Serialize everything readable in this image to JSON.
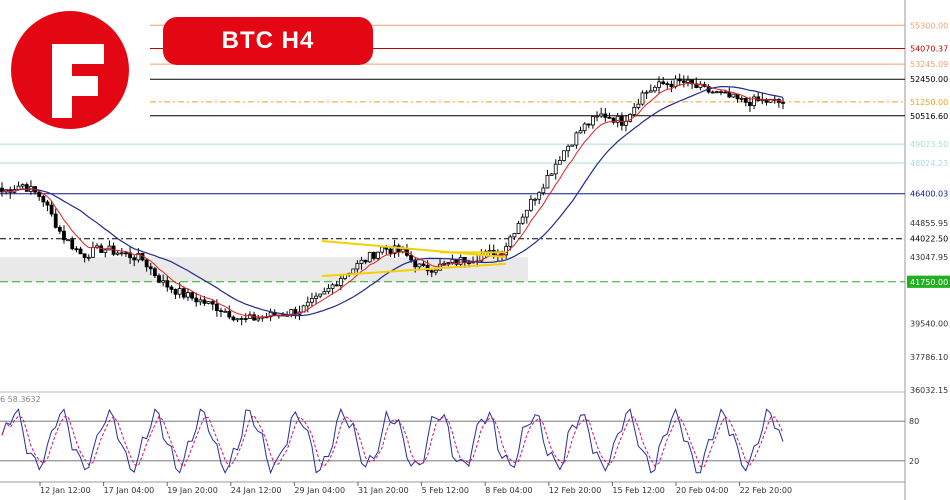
{
  "title_badge": "BTC  H4",
  "oscillator_label": "6 58.3632",
  "colors": {
    "brand": "#e30613",
    "sma": "#1f2a8c",
    "ema": "#e02020",
    "triangle": "#f5d000",
    "stoch_k": "#2030a0",
    "stoch_d": "#d01070"
  },
  "chart_data": [
    {
      "type": "candlestick",
      "symbol": "BTC",
      "timeframe": "H4",
      "ylim": [
        36032.15,
        56000
      ],
      "y_tick_labels": [
        "44855.95",
        "43047.95",
        "39540.00",
        "37786.10",
        "36032.15"
      ],
      "x_tick_labels": [
        "12 Jan 12:00",
        "17 Jan 04:00",
        "19 Jan 20:00",
        "24 Jan 12:00",
        "29 Jan 04:00",
        "31 Jan 20:00",
        "5 Feb 12:00",
        "8 Feb 04:00",
        "12 Feb 20:00",
        "15 Feb 12:00",
        "20 Feb 04:00",
        "22 Feb 20:00"
      ],
      "levels": [
        {
          "value": 55300.0,
          "label": "55300.00",
          "color": "#f0a070",
          "style": "solid"
        },
        {
          "value": 54070.37,
          "label": "54070.37",
          "color": "#c00000",
          "style": "solid"
        },
        {
          "value": 53245.09,
          "label": "53245.09",
          "color": "#f0a070",
          "style": "solid"
        },
        {
          "value": 52450.0,
          "label": "52450.00",
          "color": "#000000",
          "style": "solid"
        },
        {
          "value": 51250.0,
          "label": "51250.00",
          "color": "#f0a020",
          "style": "dashdot"
        },
        {
          "value": 50516.6,
          "label": "50516.60",
          "color": "#000000",
          "style": "solid"
        },
        {
          "value": 49023.5,
          "label": "49023.50",
          "color": "#a8dcdc",
          "style": "solid"
        },
        {
          "value": 48024.23,
          "label": "48024.23",
          "color": "#a8dcdc",
          "style": "solid"
        },
        {
          "value": 46400.03,
          "label": "46400.03",
          "color": "#0b1a8c",
          "style": "solid"
        },
        {
          "value": 44022.5,
          "label": "44022.50",
          "color": "#000000",
          "style": "dashdot"
        },
        {
          "value": 41750.0,
          "label": "41750.00",
          "color": "#20b020",
          "style": "dashed"
        }
      ],
      "support_zone": [
        41750,
        43047.95
      ],
      "close_path": [
        46500,
        46900,
        46200,
        44200,
        43150,
        43500,
        43250,
        42950,
        41700,
        41100,
        40700,
        40300,
        39700,
        39900,
        40050,
        40300,
        41000,
        42100,
        42800,
        43550,
        43300,
        42400,
        42600,
        42900,
        43150,
        43400,
        45300,
        46900,
        48600,
        49900,
        50600,
        50200,
        51700,
        52200,
        52300,
        51900,
        51600,
        51250,
        51300,
        51200
      ]
    },
    {
      "type": "line",
      "name": "stochastic",
      "ylim": [
        0,
        100
      ],
      "y_tick_labels": [
        "80",
        "20"
      ],
      "levels": [
        80,
        20
      ]
    }
  ]
}
